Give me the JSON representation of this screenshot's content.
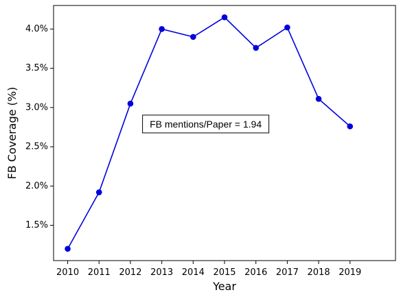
{
  "chart_data": {
    "type": "line",
    "title": "",
    "xlabel": "Year",
    "ylabel": "FB Coverage (%)",
    "x": [
      2010,
      2011,
      2012,
      2013,
      2014,
      2015,
      2016,
      2017,
      2018,
      2019
    ],
    "x_ticks": [
      "2010",
      "2011",
      "2012",
      "2013",
      "2014",
      "2015",
      "2016",
      "2017",
      "2018",
      "2019"
    ],
    "series": [
      {
        "values": [
          1.2,
          1.92,
          3.05,
          4.0,
          3.9,
          4.15,
          3.76,
          4.02,
          3.11,
          2.76
        ],
        "color": "#0000dd",
        "marker": "circle"
      }
    ],
    "xlim": [
      2009.55,
      2020.45
    ],
    "ylim": [
      1.05,
      4.3
    ],
    "y_ticks": [
      1.5,
      2.0,
      2.5,
      3.0,
      3.5,
      4.0
    ],
    "y_tick_labels": [
      "1.5%",
      "2.0%",
      "2.5%",
      "3.0%",
      "3.5%",
      "4.0%"
    ],
    "grid": false,
    "annotation": {
      "text": "FB mentions/Paper = 1.94",
      "x": 2014.4,
      "y": 2.79
    }
  }
}
